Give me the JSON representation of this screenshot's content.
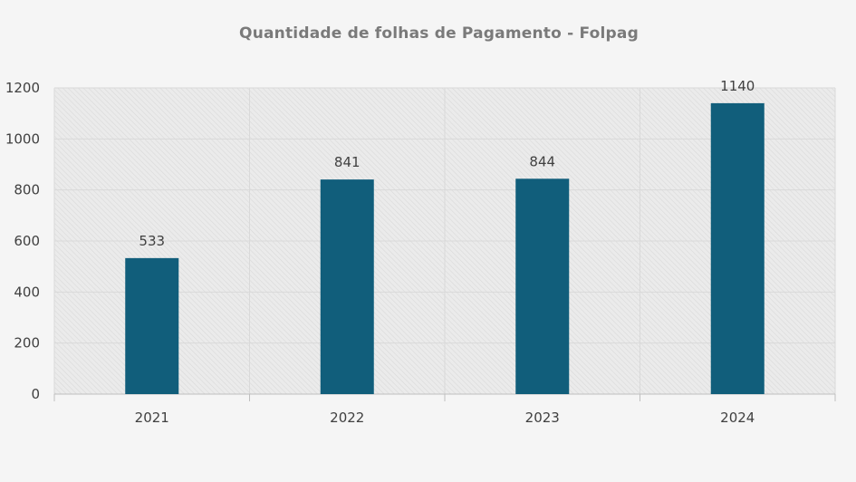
{
  "chart_data": {
    "type": "bar",
    "title": "Quantidade de folhas de Pagamento - Folpag",
    "categories": [
      "2021",
      "2022",
      "2023",
      "2024"
    ],
    "values": [
      533,
      841,
      844,
      1140
    ],
    "data_labels": [
      "533",
      "841",
      "844",
      "1140"
    ],
    "ylim": [
      0,
      1200
    ],
    "y_ticks": [
      0,
      200,
      400,
      600,
      800,
      1000,
      1200
    ],
    "xlabel": "",
    "ylabel": "",
    "grid": true,
    "legend": "none",
    "colors": {
      "bar": "#115e7b",
      "plot_background": "#e9e9e9",
      "hatch": "#d6d6d6",
      "grid": "#d9d9d9",
      "axis": "#bfbfbf",
      "text": "#404040",
      "title": "#7a7a7a"
    }
  }
}
